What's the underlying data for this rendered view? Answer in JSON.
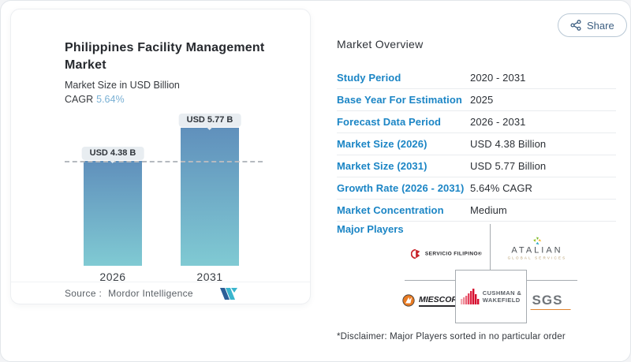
{
  "header": {
    "share_label": "Share"
  },
  "chart_card": {
    "title": "Philippines Facility Management Market",
    "subtitle": "Market Size in USD Billion",
    "cagr_label": "CAGR",
    "cagr_value": "5.64%",
    "source_label": "Source :",
    "source_value": "Mordor Intelligence"
  },
  "chart_data": {
    "type": "bar",
    "categories": [
      "2026",
      "2031"
    ],
    "values": [
      4.38,
      5.77
    ],
    "value_labels": [
      "USD 4.38 B",
      "USD 5.77 B"
    ],
    "title": "Philippines Facility Management Market",
    "ylabel": "Market Size in USD Billion",
    "ylim": [
      0,
      6.2
    ],
    "grid": false,
    "reference_line_value": 4.38,
    "bar_gradient_top": "#6090bc",
    "bar_gradient_bottom": "#80cad3"
  },
  "overview": {
    "title": "Market Overview",
    "rows": [
      {
        "label": "Study Period",
        "value": "2020 - 2031"
      },
      {
        "label": "Base Year For Estimation",
        "value": "2025"
      },
      {
        "label": "Forecast Data Period",
        "value": "2026 - 2031"
      },
      {
        "label": "Market Size (2026)",
        "value": "USD 4.38 Billion"
      },
      {
        "label": "Market Size (2031)",
        "value": "USD 5.77 Billion"
      },
      {
        "label": "Growth Rate (2026 - 2031)",
        "value": "5.64% CAGR"
      },
      {
        "label": "Market Concentration",
        "value": "Medium"
      }
    ],
    "major_players_label": "Major Players",
    "disclaimer": "*Disclaimer: Major Players sorted in no particular order"
  },
  "players": {
    "servicio_filipino": "SERVICIO FILIPINO®",
    "atalian": "ATALIAN",
    "atalian_sub": "GLOBAL SERVICES",
    "miescor": "MIESCOR",
    "cushman_line1": "CUSHMAN &",
    "cushman_line2": "WAKEFIELD",
    "sgs": "SGS"
  },
  "colors": {
    "accent_blue": "#1b85c5",
    "cagr_blue": "#79b0d4",
    "bar_top": "#6090bc",
    "bar_bottom": "#80cad3",
    "brand_navy": "#2b5f97",
    "brand_teal": "#3ab5cd"
  }
}
